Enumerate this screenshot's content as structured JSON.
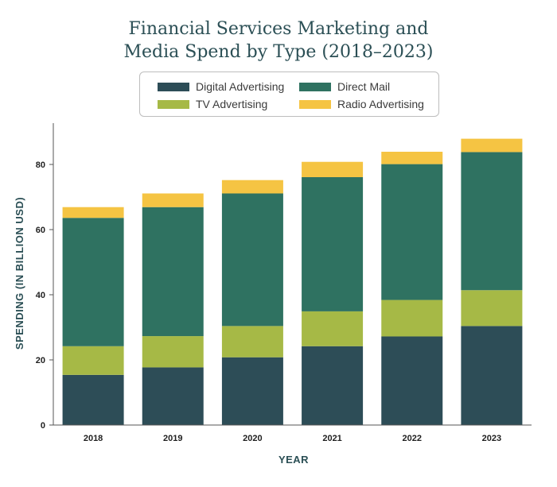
{
  "chart_data": {
    "type": "bar",
    "stacked": true,
    "title_lines": [
      "Financial Services Marketing and",
      "Media Spend by Type (2018–2023)"
    ],
    "xlabel": "YEAR",
    "ylabel": "SPENDING (IN BILLION USD)",
    "ylim": [
      0,
      90
    ],
    "yticks": [
      0,
      20,
      40,
      60,
      80
    ],
    "legend_position": "top-center",
    "grid": false,
    "categories": [
      "2018",
      "2019",
      "2020",
      "2021",
      "2022",
      "2023"
    ],
    "series": [
      {
        "name": "Digital Advertising",
        "color": "#2d4d57",
        "values": [
          15.4,
          17.7,
          20.8,
          24.2,
          27.2,
          30.4
        ]
      },
      {
        "name": "TV Advertising",
        "color": "#a6b946",
        "values": [
          8.8,
          9.6,
          9.6,
          10.7,
          11.2,
          11.0
        ]
      },
      {
        "name": "Direct Mail",
        "color": "#2f7261",
        "values": [
          39.4,
          39.6,
          40.7,
          41.2,
          41.7,
          42.4
        ]
      },
      {
        "name": "Radio Advertising",
        "color": "#f5c443",
        "values": [
          3.3,
          4.2,
          4.1,
          4.7,
          3.8,
          4.1
        ]
      }
    ],
    "legend_order": [
      0,
      2,
      1,
      3
    ]
  }
}
